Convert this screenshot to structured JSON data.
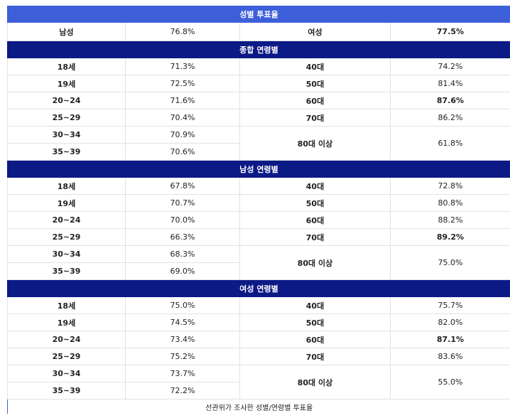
{
  "title": "성별 투표율",
  "gender": {
    "male_label": "남성",
    "male_value": "76.8%",
    "female_label": "여성",
    "female_value": "77.5%"
  },
  "sections": [
    {
      "title": "종합 연령별",
      "left": [
        [
          "18세",
          "71.3%"
        ],
        [
          "19세",
          "72.5%"
        ],
        [
          "20~24",
          "71.6%"
        ],
        [
          "25~29",
          "70.4%"
        ],
        [
          "30~34",
          "70.9%"
        ],
        [
          "35~39",
          "70.6%"
        ]
      ],
      "right": [
        [
          "40대",
          "74.2%"
        ],
        [
          "50대",
          "81.4%"
        ],
        [
          "60대",
          "87.6%"
        ],
        [
          "70대",
          "86.2%"
        ],
        [
          "80대 이상",
          "61.8%"
        ]
      ]
    },
    {
      "title": "남성 연령별",
      "left": [
        [
          "18세",
          "67.8%"
        ],
        [
          "19세",
          "70.7%"
        ],
        [
          "20~24",
          "70.0%"
        ],
        [
          "25~29",
          "66.3%"
        ],
        [
          "30~34",
          "68.3%"
        ],
        [
          "35~39",
          "69.0%"
        ]
      ],
      "right": [
        [
          "40대",
          "72.8%"
        ],
        [
          "50대",
          "80.8%"
        ],
        [
          "60대",
          "88.2%"
        ],
        [
          "70대",
          "89.2%"
        ],
        [
          "80대 이상",
          "75.0%"
        ]
      ]
    },
    {
      "title": "여성 연령별",
      "left": [
        [
          "18세",
          "75.0%"
        ],
        [
          "19세",
          "74.5%"
        ],
        [
          "20~24",
          "73.4%"
        ],
        [
          "25~29",
          "75.2%"
        ],
        [
          "30~34",
          "73.7%"
        ],
        [
          "35~39",
          "72.2%"
        ]
      ],
      "right": [
        [
          "40대",
          "75.7%"
        ],
        [
          "50대",
          "82.0%"
        ],
        [
          "60대",
          "87.1%"
        ],
        [
          "70대",
          "83.6%"
        ],
        [
          "80대 이상",
          "55.0%"
        ]
      ]
    }
  ],
  "caption": "선관위가 조사한 성별/연령별 투표율"
}
